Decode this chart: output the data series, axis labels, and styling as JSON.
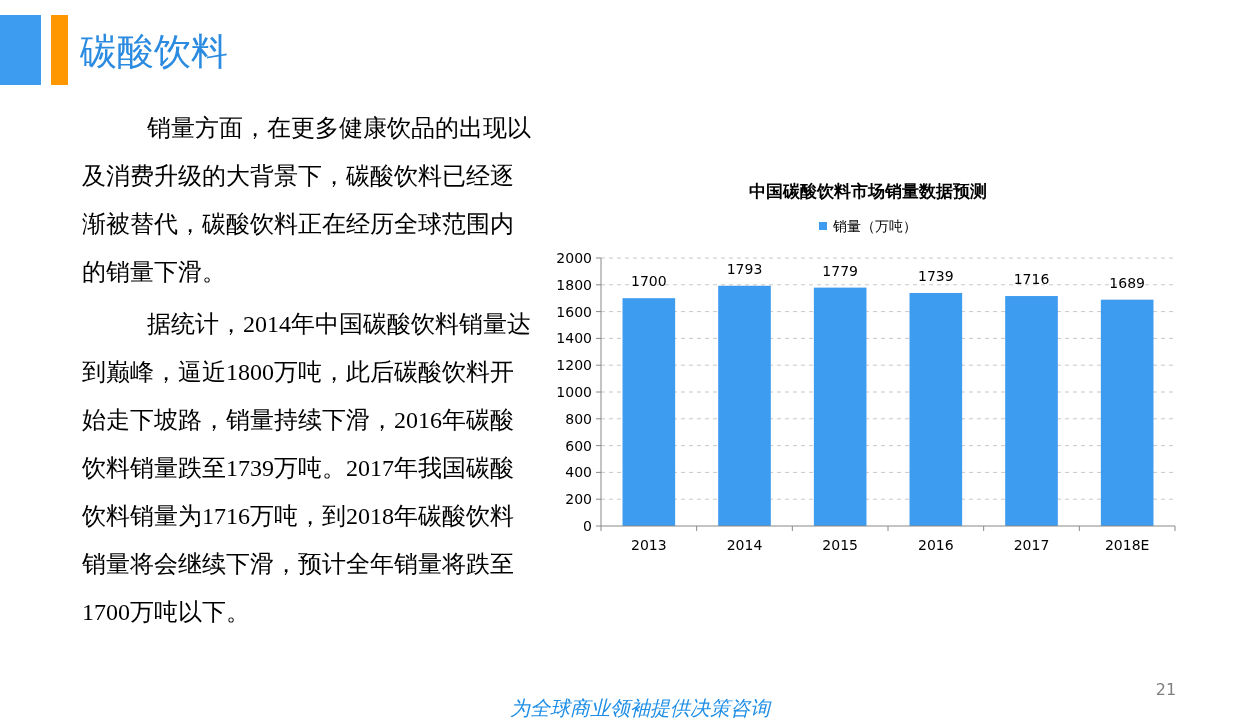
{
  "chart_data": {
    "type": "bar",
    "title": "中国碳酸饮料市场销量数据预测",
    "categories": [
      "2013",
      "2014",
      "2015",
      "2016",
      "2017",
      "2018E"
    ],
    "series": [
      {
        "name": "销量（万吨）",
        "color": "#3d9bf0",
        "values": [
          1700,
          1793,
          1779,
          1739,
          1716,
          1689
        ]
      }
    ],
    "ylim": [
      0,
      2000
    ],
    "yticks": [
      0,
      200,
      400,
      600,
      800,
      1000,
      1200,
      1400,
      1600,
      1800,
      2000
    ],
    "grid": "y",
    "legend": "top",
    "data_labels": true,
    "annotations": [
      "碳酸饮料",
      "销量方面，在更多健康饮品的出现以及消费升级的大背景下，碳酸饮料已经逐渐被替代，碳酸饮料正在经历全球范围内的销量下滑。",
      "据统计，2014年中国碳酸饮料销量达到巅峰，逼近1800万吨，此后碳酸饮料开始走下坡路，销量持续下滑，2016年碳酸饮料销量跌至1739万吨。2017年我国碳酸饮料销量为1716万吨，到2018年碳酸饮料销量将会继续下滑，预计全年销量将跌至1700万吨以下。",
      "为全球商业领袖提供决策咨询",
      "21"
    ]
  }
}
